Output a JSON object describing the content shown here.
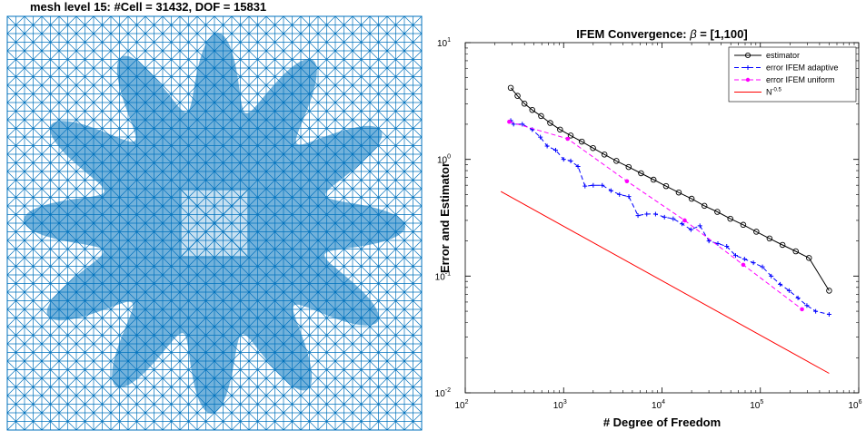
{
  "mesh_panel": {
    "title": "mesh level 15:  #Cell = 31432,  DOF = 15831",
    "mesh_color": "#0072BD"
  },
  "chart_data": {
    "type": "line",
    "title_prefix": "IFEM Convergence:  ",
    "title_symbol": "β",
    "title_suffix": " = [1,100]",
    "xlabel": "# Degree of Freedom",
    "ylabel": "Error and Estimator",
    "x_scale": "log",
    "y_scale": "log",
    "xlim": [
      100,
      1000000
    ],
    "ylim": [
      0.01,
      10
    ],
    "x_ticks": [
      {
        "value": 100,
        "base": "10",
        "exp": "2"
      },
      {
        "value": 1000,
        "base": "10",
        "exp": "3"
      },
      {
        "value": 10000,
        "base": "10",
        "exp": "4"
      },
      {
        "value": 100000,
        "base": "10",
        "exp": "5"
      },
      {
        "value": 1000000,
        "base": "10",
        "exp": "6"
      }
    ],
    "y_ticks": [
      {
        "value": 0.01,
        "base": "10",
        "exp": "-2"
      },
      {
        "value": 0.1,
        "base": "10",
        "exp": "-1"
      },
      {
        "value": 1,
        "base": "10",
        "exp": "0"
      },
      {
        "value": 10,
        "base": "10",
        "exp": "1"
      }
    ],
    "grid": false,
    "legend_position": "top-right",
    "series": [
      {
        "name": "estimator",
        "color": "#000000",
        "line_style": "solid",
        "marker": "circle",
        "x": [
          290,
          340,
          400,
          480,
          590,
          730,
          920,
          1180,
          1530,
          1990,
          2600,
          3440,
          4580,
          6120,
          8200,
          11000,
          14800,
          20000,
          27000,
          36500,
          49500,
          67000,
          91000,
          124000,
          168000,
          229000,
          312000,
          500000
        ],
        "y": [
          4.1,
          3.5,
          3.0,
          2.65,
          2.35,
          2.05,
          1.8,
          1.6,
          1.42,
          1.25,
          1.1,
          0.97,
          0.86,
          0.76,
          0.67,
          0.59,
          0.52,
          0.46,
          0.4,
          0.355,
          0.31,
          0.275,
          0.24,
          0.21,
          0.185,
          0.163,
          0.143,
          0.075
        ]
      },
      {
        "name": "error IFEM adaptive",
        "color": "#0000FF",
        "line_style": "dashed",
        "marker": "plus",
        "x": [
          290,
          310,
          380,
          480,
          580,
          680,
          830,
          1000,
          1180,
          1400,
          1650,
          2000,
          2470,
          3030,
          3700,
          4600,
          5700,
          7000,
          8600,
          10600,
          13000,
          16000,
          19700,
          24300,
          30000,
          37000,
          45500,
          56000,
          69000,
          85000,
          105000,
          129000,
          159000,
          196000,
          241000,
          297000,
          365000,
          500000
        ],
        "y": [
          2.15,
          2.0,
          2.0,
          1.8,
          1.55,
          1.3,
          1.2,
          1.0,
          0.97,
          0.87,
          0.59,
          0.6,
          0.6,
          0.54,
          0.5,
          0.48,
          0.33,
          0.34,
          0.34,
          0.32,
          0.31,
          0.28,
          0.25,
          0.27,
          0.2,
          0.19,
          0.18,
          0.15,
          0.14,
          0.13,
          0.12,
          0.1,
          0.085,
          0.075,
          0.065,
          0.056,
          0.05,
          0.047
        ]
      },
      {
        "name": "error IFEM uniform",
        "color": "#FF00FF",
        "line_style": "dashed",
        "marker": "dot",
        "x": [
          280,
          1100,
          4400,
          17000,
          67000,
          265000
        ],
        "y": [
          2.1,
          1.5,
          0.65,
          0.3,
          0.125,
          0.052
        ]
      },
      {
        "name": "N",
        "name_sup": "-0.5",
        "color": "#FF0000",
        "line_style": "solid",
        "marker": "none",
        "x": [
          230,
          500000
        ],
        "y": [
          0.53,
          0.0147
        ]
      }
    ]
  }
}
